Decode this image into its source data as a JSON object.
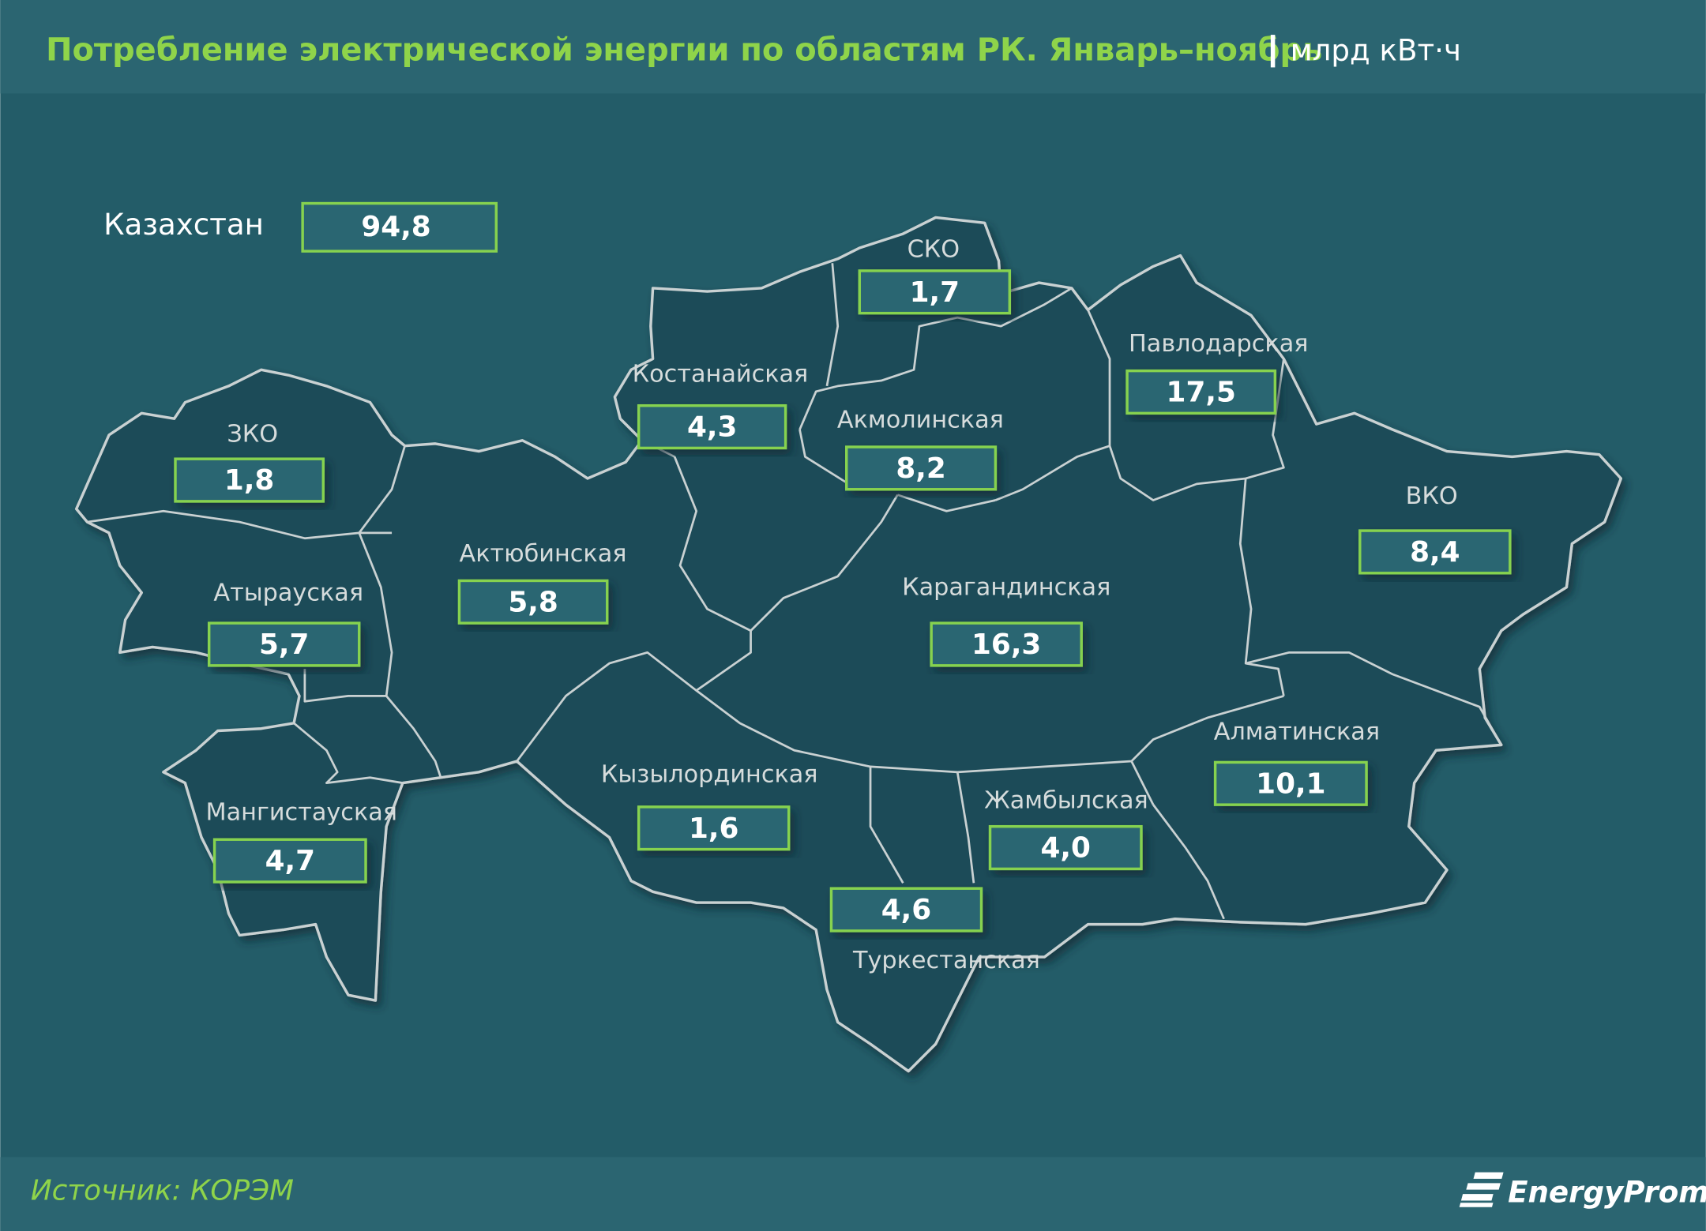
{
  "header": {
    "title": "Потребление электрической энергии по областям РК. Январь–ноябрь",
    "unit": "млрд кВт·ч"
  },
  "total": {
    "name": "Казахстан",
    "value": "94,8"
  },
  "regions": [
    {
      "name": "СКО",
      "value": "1,7"
    },
    {
      "name": "Павлодарская",
      "value": "17,5"
    },
    {
      "name": "Костанайская",
      "value": "4,3"
    },
    {
      "name": "Акмолинская",
      "value": "8,2"
    },
    {
      "name": "ЗКО",
      "value": "1,8"
    },
    {
      "name": "ВКО",
      "value": "8,4"
    },
    {
      "name": "Актюбинская",
      "value": "5,8"
    },
    {
      "name": "Карагандинская",
      "value": "16,3"
    },
    {
      "name": "Атырауская",
      "value": "5,7"
    },
    {
      "name": "Алматинская",
      "value": "10,1"
    },
    {
      "name": "Кызылординская",
      "value": "1,6"
    },
    {
      "name": "Жамбылская",
      "value": "4,0"
    },
    {
      "name": "Мангистауская",
      "value": "4,7"
    },
    {
      "name": "Туркестанская",
      "value": "4,6"
    }
  ],
  "footer": {
    "source": "Источник: КОРЭМ",
    "logo": "EnergyProm"
  }
}
